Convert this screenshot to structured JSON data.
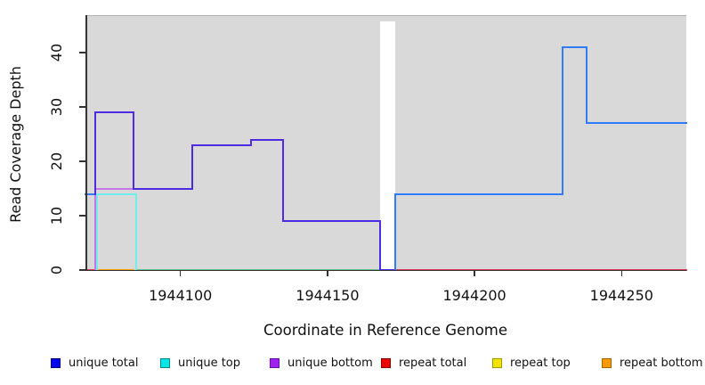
{
  "chart_data": {
    "type": "line",
    "title": "",
    "xlabel": "Coordinate in Reference Genome",
    "ylabel": "Read Coverage Depth",
    "xlim": [
      1944067.7,
      1944272
    ],
    "ylim": [
      0,
      46.9
    ],
    "xticks": [
      1944100,
      1944150,
      1944200,
      1944250
    ],
    "yticks": [
      0,
      10,
      20,
      30,
      40
    ],
    "panel_bg": "#d9d9d9",
    "grid": false,
    "legend_position": "bottom",
    "masked_region": {
      "start": 1944168,
      "end": 1944173
    },
    "lines": [
      {
        "name": "zero-line-green",
        "color": "#66bf8e",
        "points": [
          [
            1944085,
            0
          ],
          [
            1944168,
            0
          ]
        ]
      },
      {
        "name": "zero-line-crimson-left",
        "color": "#e03a5a",
        "points": [
          [
            1944067.7,
            0
          ],
          [
            1944072,
            0
          ]
        ]
      },
      {
        "name": "zero-line-crimson-right",
        "color": "#e03a5a",
        "points": [
          [
            1944173,
            0
          ],
          [
            1944272,
            0
          ]
        ]
      },
      {
        "name": "zero-line-orange",
        "color": "#ff9c00",
        "points": [
          [
            1944072,
            0
          ],
          [
            1944084,
            0
          ]
        ]
      },
      {
        "name": "unique-top-cyan",
        "color": "#72eded",
        "points": [
          [
            1944071.6,
            0
          ],
          [
            1944071.6,
            14
          ],
          [
            1944085,
            14
          ],
          [
            1944085,
            0
          ]
        ]
      },
      {
        "name": "unique-bottom-violet",
        "color": "#c478e8",
        "points": [
          [
            1944071,
            0
          ],
          [
            1944071,
            15
          ],
          [
            1944084,
            15
          ]
        ]
      },
      {
        "name": "unique-total-left-edge",
        "color": "#3b76f0",
        "points": [
          [
            1944067.7,
            14
          ],
          [
            1944071,
            14
          ]
        ]
      },
      {
        "name": "unique-total-left",
        "color": "#4c2be2",
        "points": [
          [
            1944071,
            14
          ],
          [
            1944071,
            29
          ],
          [
            1944084,
            29
          ],
          [
            1944084,
            15
          ],
          [
            1944104,
            15
          ],
          [
            1944104,
            23
          ],
          [
            1944124,
            23
          ],
          [
            1944124,
            24
          ],
          [
            1944135,
            24
          ],
          [
            1944135,
            9
          ],
          [
            1944168,
            9
          ],
          [
            1944168,
            0
          ],
          [
            1944173,
            0
          ]
        ]
      },
      {
        "name": "unique-total-right",
        "color": "#2e7cf7",
        "points": [
          [
            1944173,
            0
          ],
          [
            1944173,
            14
          ],
          [
            1944230,
            14
          ],
          [
            1944230,
            41
          ],
          [
            1944238,
            41
          ],
          [
            1944238,
            27
          ],
          [
            1944272,
            27
          ]
        ]
      }
    ],
    "legend": [
      {
        "label": "unique total",
        "color": "#0000ee",
        "border": "#000080"
      },
      {
        "label": "unique top",
        "color": "#00e5e5",
        "border": "#008b8b"
      },
      {
        "label": "unique bottom",
        "color": "#a020f0",
        "border": "#6a0dad"
      },
      {
        "label": "repeat total",
        "color": "#ee0000",
        "border": "#8b0000"
      },
      {
        "label": "repeat top",
        "color": "#f2e400",
        "border": "#9a9a00"
      },
      {
        "label": "repeat bottom",
        "color": "#f59b00",
        "border": "#b06000"
      }
    ]
  }
}
